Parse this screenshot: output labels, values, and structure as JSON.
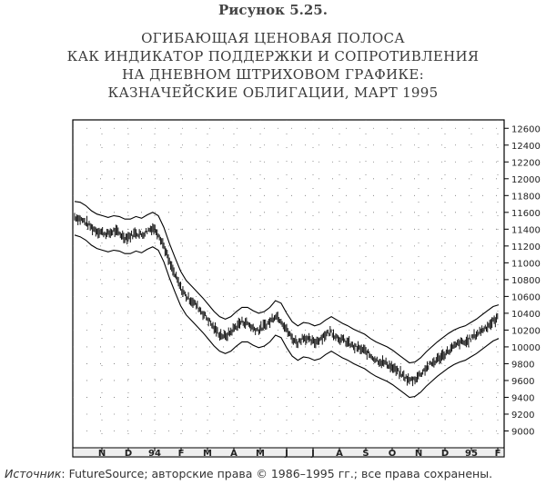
{
  "figure_label": "Рисунок 5.25.",
  "title_lines": [
    "ОГИБАЮЩАЯ ЦЕНОВАЯ ПОЛОСА",
    "КАК ИНДИКАТОР ПОДДЕРЖКИ И СОПРОТИВЛЕНИЯ",
    "НА ДНЕВНОМ ШТРИХОВОМ ГРАФИКЕ:",
    "КАЗНАЧЕЙСКИЕ ОБЛИГАЦИИ, МАРТ 1995"
  ],
  "source": {
    "prefix": "Источник",
    "text": ": FutureSource; авторские права © 1986–1995 гг.; все права сохранены."
  },
  "chart_data": {
    "type": "line",
    "title": "ОГИБАЮЩАЯ ЦЕНОВАЯ ПОЛОСА КАК ИНДИКАТОР ПОДДЕРЖКИ И СОПРОТИВЛЕНИЯ НА ДНЕВНОМ ШТРИХОВОМ ГРАФИКЕ: КАЗНАЧЕЙСКИЕ ОБЛИГАЦИИ, МАРТ 1995",
    "xlabel": "",
    "ylabel": "",
    "ylim": [
      8800,
      12700
    ],
    "y_ticks": [
      9000,
      9200,
      9400,
      9600,
      9800,
      10000,
      10200,
      10400,
      10600,
      10800,
      11000,
      11200,
      11400,
      11600,
      11800,
      12000,
      12200,
      12400,
      12600
    ],
    "x_tick_labels": [
      "N",
      "D",
      "94",
      "F",
      "M",
      "A",
      "M",
      "J",
      "J",
      "A",
      "S",
      "O",
      "N",
      "D",
      "95",
      "F"
    ],
    "grid": "dotted",
    "y_axis_side": "right",
    "price_bars_note": "daily bar chart, approximate price path",
    "price": [
      11550,
      11520,
      11480,
      11420,
      11380,
      11360,
      11340,
      11380,
      11350,
      11300,
      11320,
      11360,
      11330,
      11380,
      11420,
      11350,
      11200,
      11000,
      10850,
      10700,
      10600,
      10550,
      10480,
      10400,
      10320,
      10220,
      10150,
      10120,
      10180,
      10250,
      10300,
      10280,
      10220,
      10200,
      10250,
      10300,
      10380,
      10320,
      10200,
      10100,
      10050,
      10120,
      10080,
      10050,
      10100,
      10150,
      10180,
      10120,
      10080,
      10050,
      10000,
      9980,
      9950,
      9900,
      9850,
      9820,
      9800,
      9750,
      9700,
      9650,
      9600,
      9620,
      9680,
      9750,
      9800,
      9850,
      9900,
      9950,
      10000,
      10050,
      10050,
      10100,
      10150,
      10200,
      10250,
      10300,
      10350
    ],
    "series": [
      {
        "name": "",
        "values": [
          11730,
          11720,
          11680,
          11620,
          11580,
          11560,
          11540,
          11560,
          11550,
          11520,
          11520,
          11550,
          11530,
          11570,
          11600,
          11560,
          11420,
          11230,
          11060,
          10900,
          10790,
          10720,
          10650,
          10580,
          10500,
          10420,
          10360,
          10330,
          10360,
          10420,
          10470,
          10470,
          10430,
          10400,
          10420,
          10470,
          10550,
          10520,
          10400,
          10300,
          10250,
          10290,
          10280,
          10250,
          10270,
          10320,
          10360,
          10320,
          10280,
          10250,
          10210,
          10180,
          10150,
          10100,
          10060,
          10030,
          10000,
          9960,
          9910,
          9860,
          9810,
          9820,
          9870,
          9940,
          10000,
          10060,
          10110,
          10160,
          10200,
          10230,
          10250,
          10290,
          10330,
          10380,
          10430,
          10480,
          10500
        ]
      },
      {
        "name": "",
        "values": [
          11330,
          11310,
          11270,
          11210,
          11170,
          11150,
          11130,
          11150,
          11140,
          11110,
          11110,
          11140,
          11120,
          11160,
          11190,
          11150,
          11010,
          10820,
          10650,
          10490,
          10380,
          10310,
          10240,
          10170,
          10090,
          10010,
          9950,
          9920,
          9950,
          10010,
          10060,
          10060,
          10020,
          9990,
          10010,
          10060,
          10140,
          10110,
          9990,
          9890,
          9840,
          9880,
          9870,
          9840,
          9860,
          9910,
          9950,
          9910,
          9870,
          9840,
          9800,
          9770,
          9740,
          9690,
          9650,
          9620,
          9590,
          9550,
          9500,
          9450,
          9400,
          9410,
          9460,
          9530,
          9590,
          9650,
          9700,
          9750,
          9790,
          9820,
          9840,
          9880,
          9920,
          9970,
          10020,
          10070,
          10100
        ]
      }
    ]
  }
}
